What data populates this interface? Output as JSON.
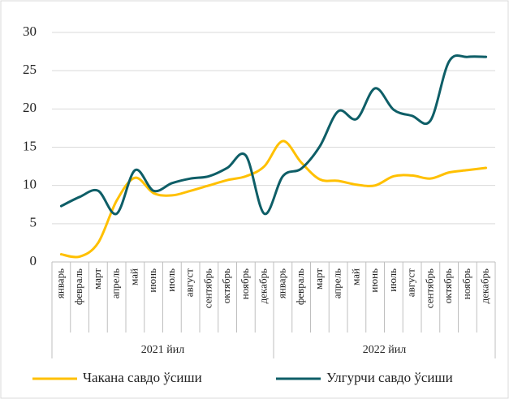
{
  "chart_data": {
    "type": "line",
    "categories": [
      "январь",
      "февраль",
      "март",
      "апрель",
      "май",
      "июнь",
      "июль",
      "август",
      "сентябрь",
      "октябрь",
      "ноябрь",
      "декабрь",
      "январь",
      "февраль",
      "март",
      "апрель",
      "май",
      "июнь",
      "июль",
      "август",
      "сентябрь",
      "октябрь",
      "ноябрь",
      "декабрь"
    ],
    "x_groups": [
      "2021 йил",
      "2022 йил"
    ],
    "series": [
      {
        "name": "Чакана савдо ўсиши",
        "color": "#FFC000",
        "values": [
          1.0,
          0.7,
          2.5,
          8.0,
          11.0,
          9.0,
          8.7,
          9.3,
          10.0,
          10.7,
          11.2,
          12.5,
          15.8,
          13.0,
          10.8,
          10.6,
          10.1,
          10.0,
          11.2,
          11.3,
          10.9,
          11.7,
          12.0,
          12.3
        ]
      },
      {
        "name": "Улгурчи савдо ўсиши",
        "color": "#0E5E67",
        "values": [
          7.3,
          8.5,
          9.3,
          6.3,
          12.0,
          9.3,
          10.3,
          10.9,
          11.2,
          12.3,
          13.9,
          6.3,
          11.2,
          12.2,
          15.1,
          19.7,
          18.7,
          22.7,
          19.9,
          19.1,
          18.5,
          26.2,
          26.8,
          26.8
        ]
      }
    ],
    "ylim": [
      0,
      30
    ],
    "yticks": [
      0,
      5,
      10,
      15,
      20,
      25,
      30
    ],
    "grid": true,
    "smooth": true,
    "legend": "bottom"
  }
}
